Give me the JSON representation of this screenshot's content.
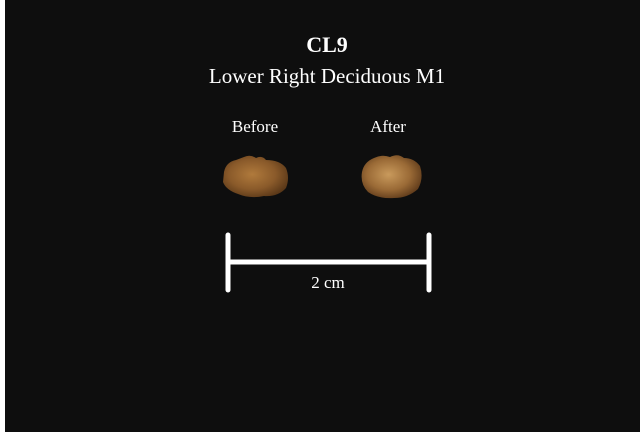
{
  "header": {
    "title": "CL9",
    "subtitle": "Lower Right Deciduous M1"
  },
  "labels": {
    "before": "Before",
    "after": "After"
  },
  "scale_bar": {
    "label": "2 cm"
  }
}
